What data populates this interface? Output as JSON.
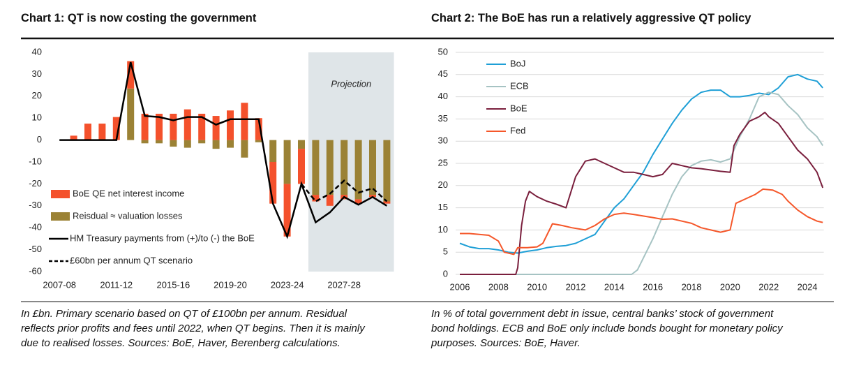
{
  "chart_data": [
    {
      "type": "bar",
      "title": "Chart 1: QT is now costing the government",
      "caption": [
        "In £bn. Primary scenario based on QT of £100bn per annum. Residual",
        "reflects prior profits and fees until 2022, when QT begins. Then it is mainly",
        "due to realised losses. Sources: BoE, Haver, Berenberg calculations."
      ],
      "annotation": "Projection",
      "categories": [
        "2007-08",
        null,
        null,
        null,
        "2011-12",
        null,
        null,
        null,
        "2015-16",
        null,
        null,
        null,
        "2019-20",
        null,
        null,
        null,
        "2023-24",
        null,
        null,
        null,
        "2027-28",
        null,
        null,
        null
      ],
      "ylim": [
        -60,
        40
      ],
      "yticks": [
        -60,
        -50,
        -40,
        -30,
        -20,
        -10,
        0,
        10,
        20,
        30,
        40
      ],
      "grid": false,
      "legend": "lower left",
      "series": [
        {
          "name": "BoE QE net interest income",
          "kind": "bar",
          "color": "#f4512c",
          "values": [
            null,
            2,
            7.5,
            7.5,
            10.5,
            12.5,
            12,
            12,
            12,
            14,
            12,
            11,
            13.5,
            17,
            10,
            -19,
            -24,
            -16,
            -3,
            -5,
            -2,
            -2,
            -1,
            -1
          ]
        },
        {
          "name": "Reisdual ≈ valuation losses",
          "kind": "bar",
          "color": "#9b8235",
          "values": [
            null,
            null,
            null,
            null,
            null,
            23.5,
            -1.5,
            -1.5,
            -3,
            -3.5,
            -1.5,
            -4,
            -3.5,
            -8,
            -1,
            -10,
            -20,
            -4,
            -25,
            -25,
            -25,
            -27,
            -25,
            -28
          ]
        },
        {
          "name": "HM Treasury payments from (+)/to (-) the BoE",
          "kind": "line",
          "dash": false,
          "color": "#000000",
          "values": [
            0,
            0,
            0,
            0,
            0,
            35.5,
            11,
            10.5,
            9,
            10.5,
            10.5,
            7,
            9.5,
            9.5,
            9.5,
            -29,
            -44,
            -20,
            -37.5,
            -33,
            -26,
            -29.5,
            -26,
            -30
          ]
        },
        {
          "name": "£60bn per annum QT scenario",
          "kind": "line",
          "dash": true,
          "color": "#000000",
          "values": [
            null,
            null,
            null,
            null,
            null,
            null,
            null,
            null,
            null,
            null,
            null,
            null,
            null,
            null,
            null,
            null,
            null,
            -20,
            -28,
            -24.5,
            -18.5,
            -24,
            -22,
            -28
          ]
        }
      ]
    },
    {
      "type": "line",
      "title": "Chart 2: The BoE has run a relatively aggressive QT policy",
      "caption": [
        "In % of total government debt in issue, central banks’ stock of government",
        "bond holdings. ECB and BoE only include bonds bought for monetary policy",
        "purposes. Sources: BoE, Haver."
      ],
      "xlim": [
        2006,
        2024.85
      ],
      "xticks": [
        2006,
        2008,
        2010,
        2012,
        2014,
        2016,
        2018,
        2020,
        2022,
        2024
      ],
      "ylim": [
        0,
        50
      ],
      "yticks": [
        0,
        5,
        10,
        15,
        20,
        25,
        30,
        35,
        40,
        45,
        50
      ],
      "grid": true,
      "legend": "upper left",
      "series": [
        {
          "name": "BoJ",
          "color": "#1e9fd6",
          "x": [
            2006,
            2006.5,
            2007,
            2007.5,
            2008,
            2008.5,
            2009,
            2009.5,
            2010,
            2010.5,
            2011,
            2011.5,
            2012,
            2012.5,
            2013,
            2013.5,
            2014,
            2014.5,
            2015,
            2015.5,
            2016,
            2016.5,
            2017,
            2017.5,
            2018,
            2018.5,
            2019,
            2019.5,
            2020,
            2020.5,
            2021,
            2021.5,
            2022,
            2022.5,
            2023,
            2023.5,
            2024,
            2024.5,
            2024.8
          ],
          "values": [
            7,
            6.2,
            5.8,
            5.8,
            5.5,
            5,
            4.8,
            5.2,
            5.5,
            6,
            6.3,
            6.5,
            7,
            8,
            9,
            12,
            15,
            17,
            20,
            23,
            27,
            30.5,
            34,
            37,
            39.5,
            41,
            41.5,
            41.5,
            40,
            40,
            40.3,
            40.8,
            40.5,
            42,
            44.5,
            45,
            44,
            43.5,
            42
          ]
        },
        {
          "name": "ECB",
          "color": "#a6c3c3",
          "x": [
            2006,
            2014.9,
            2015.2,
            2015.6,
            2016,
            2016.5,
            2017,
            2017.5,
            2018,
            2018.5,
            2019,
            2019.5,
            2020,
            2020.5,
            2021,
            2021.5,
            2022,
            2022.5,
            2023,
            2023.5,
            2024,
            2024.5,
            2024.8
          ],
          "values": [
            0,
            0,
            1,
            4.5,
            8,
            13,
            18,
            22,
            24.5,
            25.5,
            25.8,
            25.3,
            26,
            31,
            35,
            40,
            41,
            40.5,
            38,
            36,
            33,
            31,
            29
          ]
        },
        {
          "name": "BoE",
          "color": "#7a1f3d",
          "x": [
            2006,
            2008.9,
            2009,
            2009.2,
            2009.4,
            2009.6,
            2010,
            2010.5,
            2011,
            2011.5,
            2012,
            2012.5,
            2013,
            2013.5,
            2014,
            2014.5,
            2015,
            2015.5,
            2016,
            2016.5,
            2017,
            2017.5,
            2018,
            2018.5,
            2019,
            2019.5,
            2020,
            2020.2,
            2020.5,
            2021,
            2021.5,
            2021.8,
            2022,
            2022.5,
            2023,
            2023.5,
            2024,
            2024.5,
            2024.8
          ],
          "values": [
            0,
            0,
            1.5,
            11,
            16.5,
            18.7,
            17.5,
            16.5,
            15.8,
            15,
            22,
            25.5,
            26,
            25,
            24,
            23,
            23,
            22.5,
            22,
            22.5,
            25,
            24.5,
            24,
            23.8,
            23.5,
            23.2,
            23,
            29,
            31.5,
            34.5,
            35.5,
            36.5,
            35.5,
            34,
            31,
            28,
            26,
            23,
            19.5
          ]
        },
        {
          "name": "Fed",
          "color": "#f5572a",
          "x": [
            2006,
            2006.5,
            2007,
            2007.5,
            2008,
            2008.3,
            2008.8,
            2009,
            2009.5,
            2010,
            2010.3,
            2010.8,
            2011.3,
            2011.8,
            2012.5,
            2013,
            2013.5,
            2014,
            2014.5,
            2015,
            2016,
            2016.5,
            2017,
            2017.5,
            2018,
            2018.5,
            2019,
            2019.5,
            2020,
            2020.3,
            2020.8,
            2021.3,
            2021.7,
            2022.2,
            2022.7,
            2023,
            2023.5,
            2024,
            2024.5,
            2024.8
          ],
          "values": [
            9.2,
            9.2,
            9,
            8.8,
            7.5,
            5,
            4.5,
            6,
            6,
            6.2,
            7,
            11.4,
            11,
            10.5,
            10,
            11,
            12.5,
            13.5,
            13.8,
            13.5,
            12.8,
            12.4,
            12.5,
            12,
            11.5,
            10.5,
            10,
            9.5,
            10,
            16,
            17,
            18,
            19.2,
            19,
            18,
            16.5,
            14.5,
            13,
            12,
            11.7
          ]
        }
      ]
    }
  ]
}
